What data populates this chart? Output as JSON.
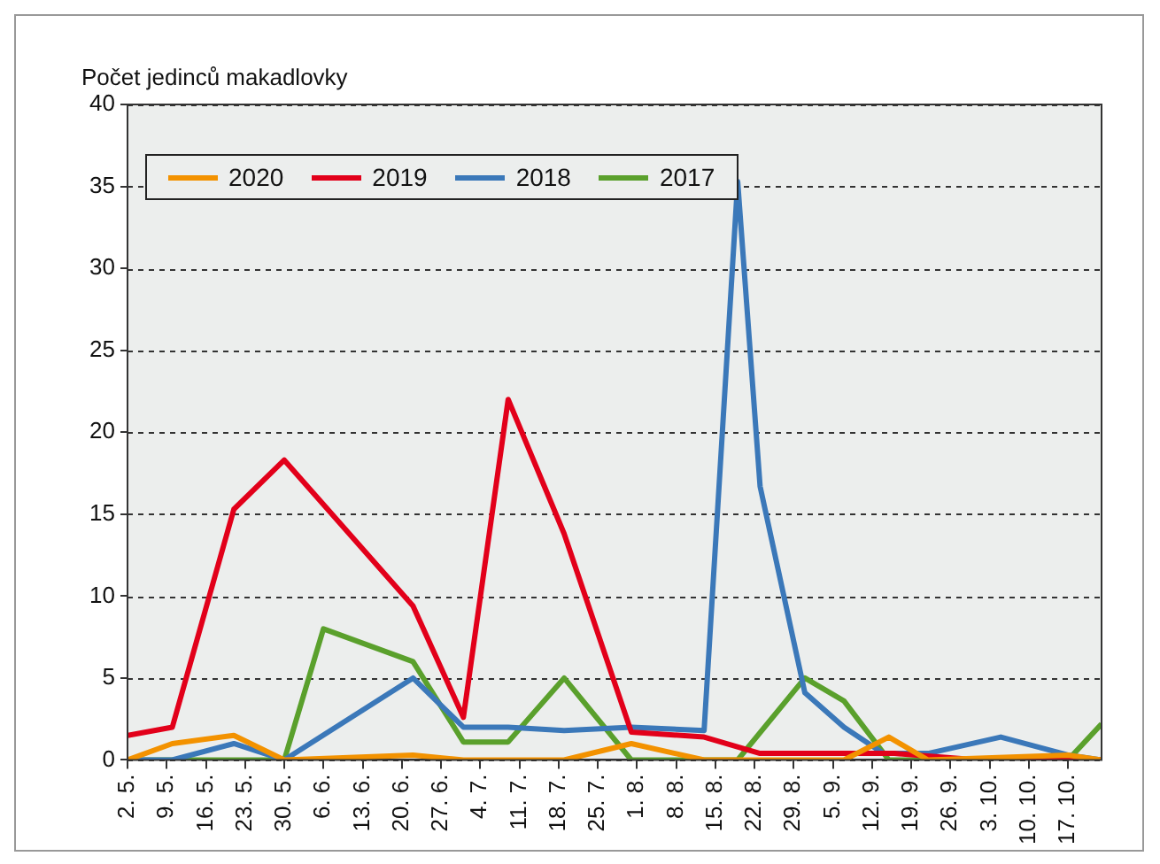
{
  "chart_data": {
    "type": "line",
    "ylabel": "Počet jedinců makadlovky",
    "xlim": [
      "--05-02",
      "--10-23"
    ],
    "xticks": [
      {
        "value": "--05-02",
        "label": "2. 5."
      },
      {
        "value": "--05-09",
        "label": "9. 5."
      },
      {
        "value": "--05-16",
        "label": "16. 5."
      },
      {
        "value": "--05-23",
        "label": "23. 5."
      },
      {
        "value": "--05-30",
        "label": "30. 5."
      },
      {
        "value": "--06-06",
        "label": "6. 6."
      },
      {
        "value": "--06-13",
        "label": "13. 6."
      },
      {
        "value": "--06-20",
        "label": "20. 6."
      },
      {
        "value": "--06-27",
        "label": "27. 6."
      },
      {
        "value": "--07-04",
        "label": "4. 7."
      },
      {
        "value": "--07-11",
        "label": "11. 7."
      },
      {
        "value": "--07-18",
        "label": "18. 7."
      },
      {
        "value": "--07-25",
        "label": "25. 7."
      },
      {
        "value": "--08-01",
        "label": "1. 8."
      },
      {
        "value": "--08-08",
        "label": "8. 8."
      },
      {
        "value": "--08-15",
        "label": "15. 8."
      },
      {
        "value": "--08-22",
        "label": "22. 8."
      },
      {
        "value": "--08-29",
        "label": "29. 8."
      },
      {
        "value": "--09-05",
        "label": "5. 9."
      },
      {
        "value": "--09-12",
        "label": "12. 9."
      },
      {
        "value": "--09-19",
        "label": "19. 9."
      },
      {
        "value": "--09-26",
        "label": "26. 9."
      },
      {
        "value": "--10-03",
        "label": "3. 10."
      },
      {
        "value": "--10-10",
        "label": "10. 10."
      },
      {
        "value": "--10-17",
        "label": "17. 10."
      }
    ],
    "ylim": [
      0,
      40
    ],
    "yticks": [
      0,
      5,
      10,
      15,
      20,
      25,
      30,
      35,
      40
    ],
    "grid": "y",
    "legend": "top left",
    "marker": "none",
    "line_style": "solid",
    "series": [
      {
        "name": "2020",
        "color": "#f39200",
        "x": [
          "--05-02",
          "--05-10",
          "--05-21",
          "--05-30",
          "--06-22",
          "--07-01",
          "--07-19",
          "--07-31",
          "--08-13",
          "--09-07",
          "--09-15",
          "--09-22",
          "--10-17",
          "--10-23"
        ],
        "values": [
          0,
          1,
          1.5,
          0,
          0.3,
          0,
          0,
          1,
          0,
          0,
          1.4,
          0,
          0.3,
          0
        ]
      },
      {
        "name": "2019",
        "color": "#e2001a",
        "x": [
          "--05-02",
          "--05-10",
          "--05-21",
          "--05-30",
          "--06-22",
          "--07-01",
          "--07-09",
          "--07-19",
          "--07-31",
          "--08-13",
          "--08-23",
          "--09-16",
          "--10-01",
          "--10-23"
        ],
        "values": [
          1.5,
          2,
          15.3,
          18.3,
          9.4,
          2.6,
          22,
          13.8,
          1.7,
          1.4,
          0.4,
          0.4,
          0,
          0
        ]
      },
      {
        "name": "2018",
        "color": "#3b78b9",
        "x": [
          "--05-02",
          "--05-10",
          "--05-21",
          "--05-30",
          "--06-22",
          "--07-01",
          "--07-09",
          "--07-19",
          "--07-31",
          "--08-13",
          "--08-19",
          "--08-23",
          "--08-31",
          "--09-07",
          "--09-14",
          "--09-22",
          "--10-05",
          "--10-17",
          "--10-23"
        ],
        "values": [
          0,
          0,
          1,
          0,
          5,
          2,
          2,
          1.8,
          2,
          1.8,
          35.3,
          16.7,
          4.1,
          2,
          0.4,
          0.4,
          1.4,
          0.3,
          0
        ]
      },
      {
        "name": "2017",
        "color": "#5aa02c",
        "x": [
          "--05-02",
          "--05-30",
          "--06-06",
          "--06-22",
          "--07-01",
          "--07-09",
          "--07-19",
          "--07-31",
          "--08-19",
          "--08-31",
          "--09-07",
          "--09-15",
          "--10-17",
          "--10-23"
        ],
        "values": [
          0,
          0,
          8,
          6,
          1.1,
          1.1,
          5,
          0,
          0,
          5,
          3.6,
          0,
          0,
          2.2
        ]
      }
    ]
  }
}
